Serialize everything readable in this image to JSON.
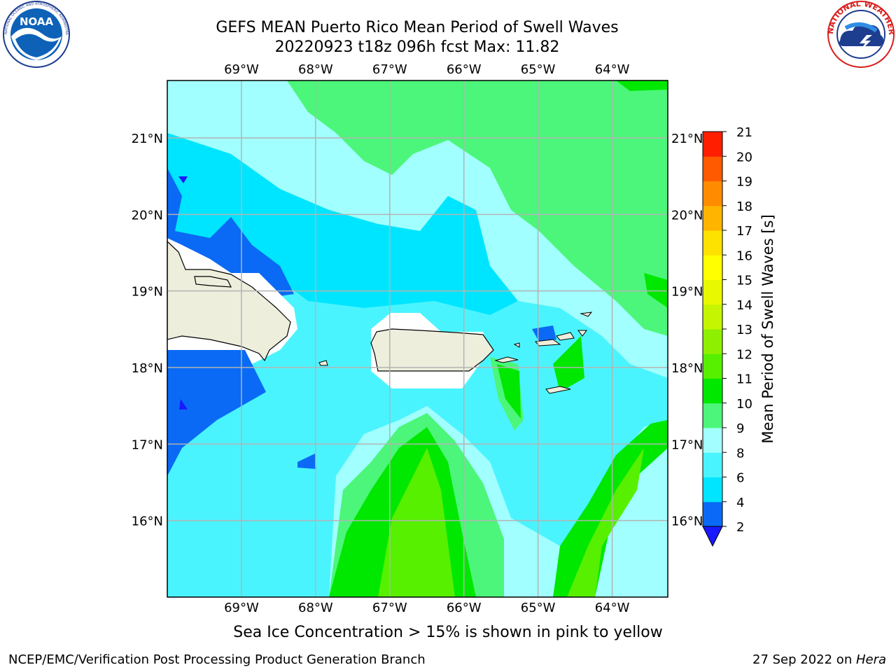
{
  "header": {
    "title_line1": "GEFS MEAN Puerto Rico Mean Period of Swell Waves",
    "title_line2": "20220923 t18z 096h fcst   Max: 11.82"
  },
  "logos": {
    "noara_text": "NOAA",
    "noaa_ring": "NATIONAL OCEANIC AND ATMOSPHERIC ADMINISTRATION · U.S. DEPARTMENT OF COMMERCE",
    "nws_ring": "NATIONAL WEATHER SERVICE"
  },
  "map": {
    "lon_labels": [
      "69°W",
      "68°W",
      "67°W",
      "66°W",
      "65°W",
      "64°W"
    ],
    "lat_labels": [
      "21°N",
      "20°N",
      "19°N",
      "18°N",
      "17°N",
      "16°N"
    ],
    "lon_values": [
      -69,
      -68,
      -67,
      -66,
      -65,
      -64
    ],
    "lat_values": [
      21,
      20,
      19,
      18,
      17,
      16
    ],
    "extent": {
      "lon_min": -70,
      "lon_max": -63.25,
      "lat_min": 15,
      "lat_max": 21.75
    }
  },
  "colorbar": {
    "label": "Mean Period of Swell Waves [s]",
    "ticks": [
      "2",
      "4",
      "6",
      "8",
      "9",
      "10",
      "11",
      "12",
      "13",
      "14",
      "15",
      "16",
      "17",
      "18",
      "19",
      "20",
      "21"
    ],
    "colors": [
      "#0a6af5",
      "#00e5ff",
      "#4af4ff",
      "#a2ffff",
      "#4cf67a",
      "#00e800",
      "#56f000",
      "#8ef000",
      "#c5f500",
      "#e8f800",
      "#ffff00",
      "#ffe100",
      "#ffb400",
      "#ff8c00",
      "#ff5a00",
      "#ff1e00"
    ],
    "under_color": "#1919ff"
  },
  "caption": "Sea Ice Concentration > 15% is shown in pink to yellow",
  "footer": {
    "left": "NCEP/EMC/Verification Post Processing Product Generation Branch",
    "right_prefix": "27 Sep 2022 on ",
    "right_host": "Hera"
  }
}
